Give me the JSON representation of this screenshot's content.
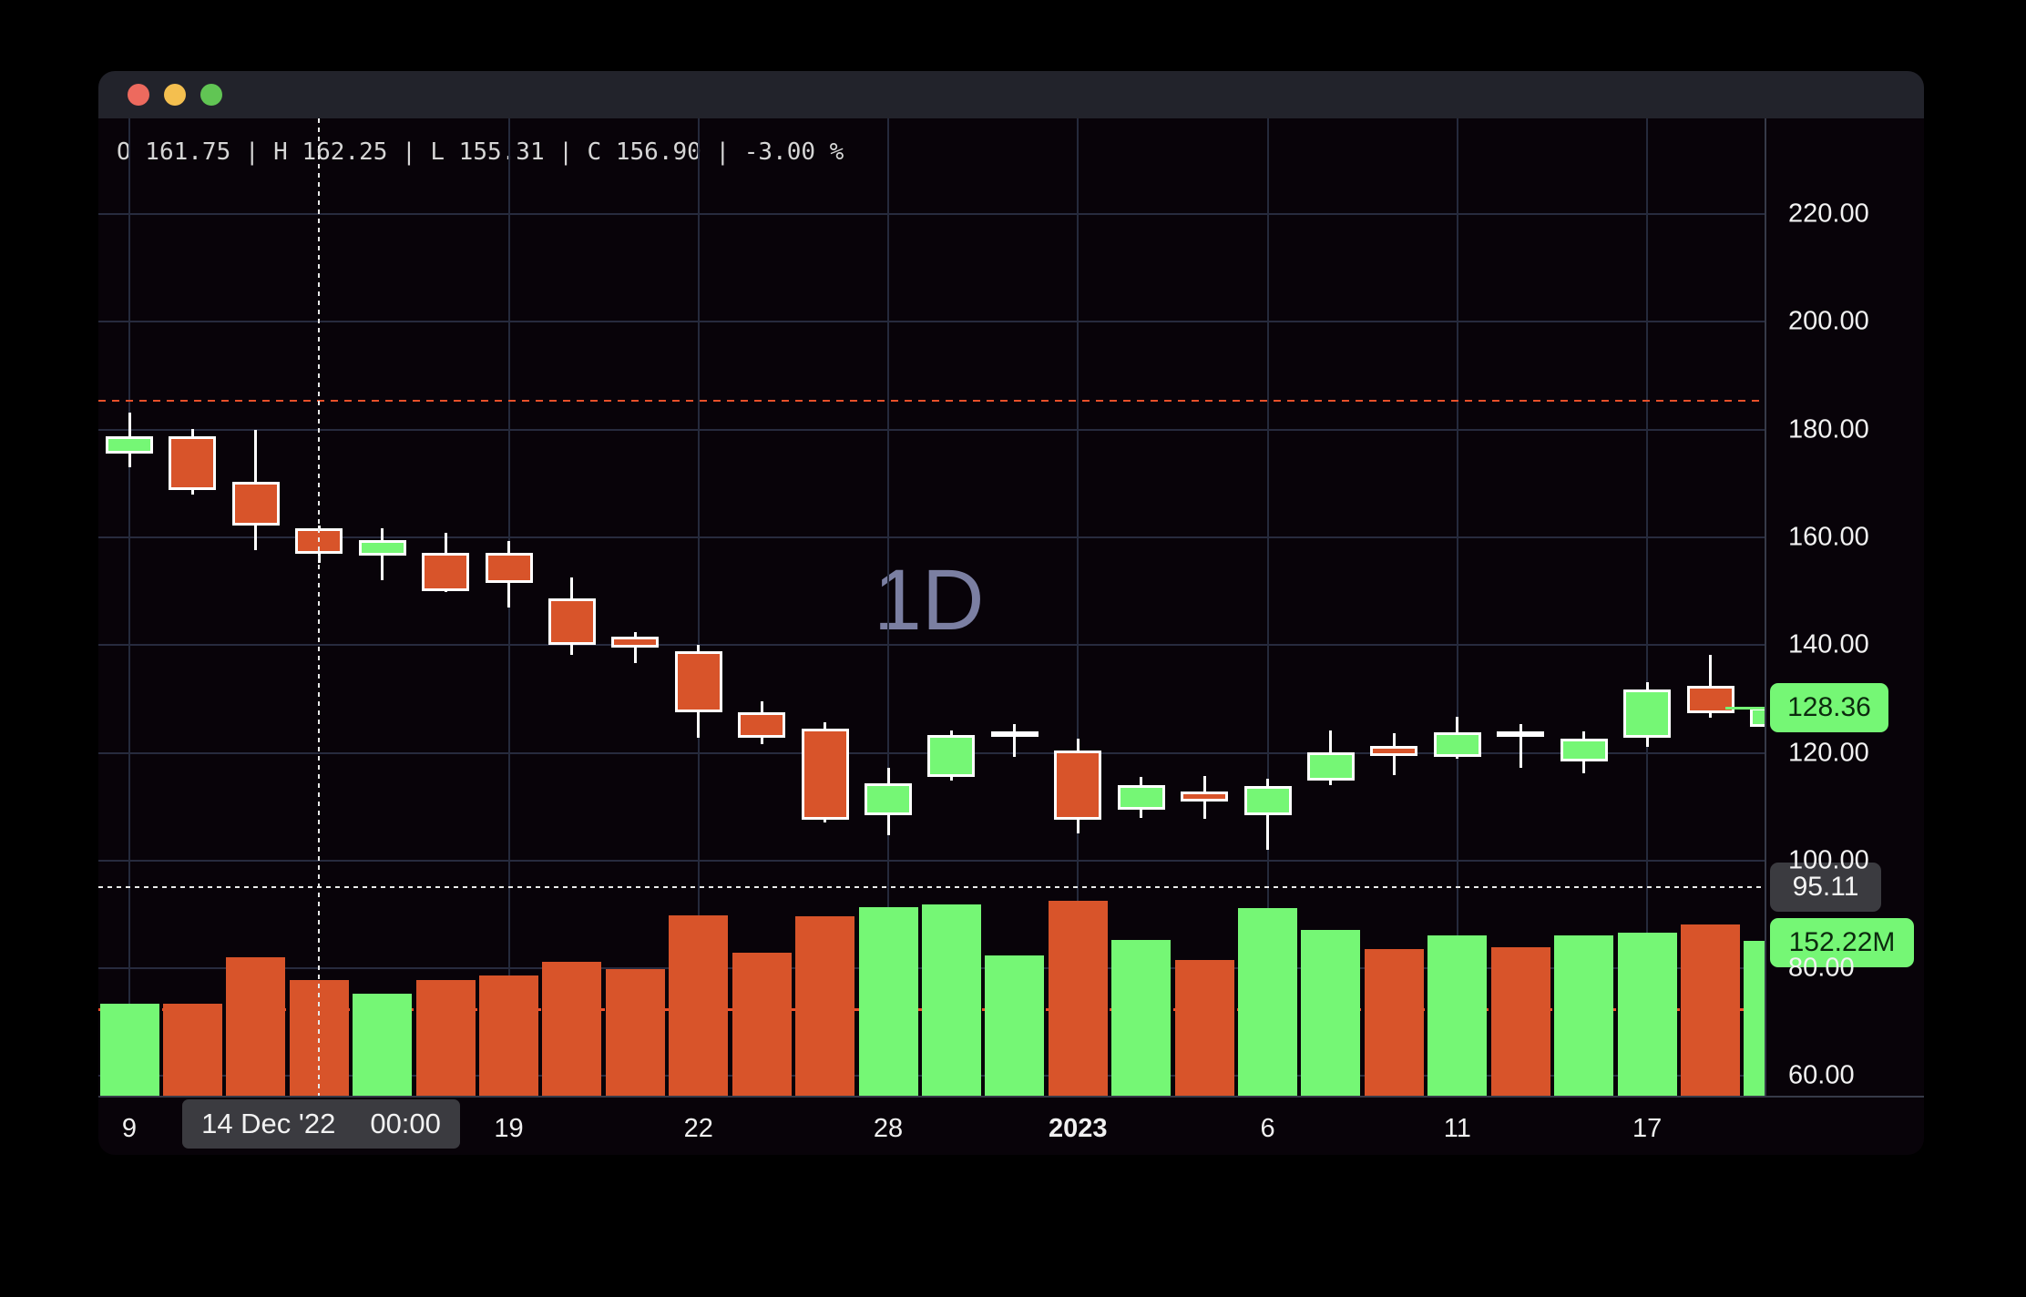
{
  "window": {
    "traffic_lights": [
      "close",
      "minimize",
      "zoom"
    ]
  },
  "ohlc_row": {
    "text": "O 161.75 | H 162.25 | L 155.31 | C 156.90 | -3.00 %"
  },
  "watermark": "1D",
  "colors": {
    "up": "#75f775",
    "down": "#d8542a",
    "wick": "#ffffff",
    "background": "#080309",
    "grid": "#272b3e",
    "watermark": "#7b7fa2",
    "prev_close_line": "#e8502a",
    "volume_level_line": "#f1512b",
    "crosshair": "#e9e9e9"
  },
  "chart_data": {
    "type": "candlestick_with_volume",
    "timeframe": "1D",
    "price_axis": {
      "ticks": [
        {
          "value": 220,
          "label": "220.00"
        },
        {
          "value": 200,
          "label": "200.00"
        },
        {
          "value": 180,
          "label": "180.00"
        },
        {
          "value": 160,
          "label": "160.00"
        },
        {
          "value": 140,
          "label": "140.00"
        },
        {
          "value": 120,
          "label": "120.00"
        },
        {
          "value": 100,
          "label": "100.00"
        },
        {
          "value": 80,
          "label": "80.00"
        },
        {
          "value": 60,
          "label": "60.00"
        }
      ]
    },
    "time_axis": {
      "ticks": [
        {
          "label": "9",
          "bar_index": 0,
          "bold": false
        },
        {
          "label": "19",
          "bar_index": 6,
          "bold": false
        },
        {
          "label": "22",
          "bar_index": 9,
          "bold": false
        },
        {
          "label": "28",
          "bar_index": 12,
          "bold": false
        },
        {
          "label": "2023",
          "bar_index": 15,
          "bold": true
        },
        {
          "label": "6",
          "bar_index": 18,
          "bold": false
        },
        {
          "label": "11",
          "bar_index": 21,
          "bold": false
        },
        {
          "label": "17",
          "bar_index": 24,
          "bold": false
        }
      ]
    },
    "bars": [
      {
        "date": "2022-12-09",
        "o": 175.5,
        "h": 183.1,
        "l": 173.0,
        "c": 178.7,
        "v_m": 90,
        "vol_up": true
      },
      {
        "date": "2022-12-12",
        "o": 178.7,
        "h": 180.1,
        "l": 167.9,
        "c": 168.8,
        "v_m": 90,
        "vol_up": false
      },
      {
        "date": "2022-12-13",
        "o": 170.3,
        "h": 179.9,
        "l": 157.6,
        "c": 162.2,
        "v_m": 136,
        "vol_up": false
      },
      {
        "date": "2022-12-14",
        "o": 161.75,
        "h": 162.25,
        "l": 155.31,
        "c": 156.9,
        "v_m": 114,
        "vol_up": false
      },
      {
        "date": "2022-12-15",
        "o": 156.6,
        "h": 161.7,
        "l": 152.1,
        "c": 159.5,
        "v_m": 100,
        "vol_up": true
      },
      {
        "date": "2022-12-16",
        "o": 157.1,
        "h": 160.9,
        "l": 149.8,
        "c": 150.0,
        "v_m": 114,
        "vol_up": false
      },
      {
        "date": "2022-12-19",
        "o": 157.1,
        "h": 159.3,
        "l": 147.0,
        "c": 151.6,
        "v_m": 118,
        "vol_up": false
      },
      {
        "date": "2022-12-20",
        "o": 148.7,
        "h": 152.5,
        "l": 138.2,
        "c": 140.0,
        "v_m": 132,
        "vol_up": false
      },
      {
        "date": "2022-12-21",
        "o": 141.5,
        "h": 142.4,
        "l": 136.6,
        "c": 139.5,
        "v_m": 124,
        "vol_up": false
      },
      {
        "date": "2022-12-22",
        "o": 138.8,
        "h": 140.0,
        "l": 122.8,
        "c": 127.5,
        "v_m": 177,
        "vol_up": false
      },
      {
        "date": "2022-12-23",
        "o": 127.5,
        "h": 129.6,
        "l": 121.6,
        "c": 122.8,
        "v_m": 141,
        "vol_up": false
      },
      {
        "date": "2022-12-27",
        "o": 124.5,
        "h": 125.7,
        "l": 107.1,
        "c": 107.6,
        "v_m": 176,
        "vol_up": false
      },
      {
        "date": "2022-12-28",
        "o": 108.4,
        "h": 117.2,
        "l": 104.7,
        "c": 114.4,
        "v_m": 185,
        "vol_up": true
      },
      {
        "date": "2022-12-29",
        "o": 115.5,
        "h": 124.2,
        "l": 114.9,
        "c": 123.3,
        "v_m": 188,
        "vol_up": true
      },
      {
        "date": "2022-12-30",
        "o": 123.2,
        "h": 125.3,
        "l": 119.2,
        "c": 123.9,
        "v_m": 138,
        "vol_up": true
      },
      {
        "date": "2023-01-03",
        "o": 120.4,
        "h": 122.6,
        "l": 105.0,
        "c": 107.6,
        "v_m": 192,
        "vol_up": false
      },
      {
        "date": "2023-01-04",
        "o": 109.4,
        "h": 115.5,
        "l": 107.9,
        "c": 114.0,
        "v_m": 153,
        "vol_up": true
      },
      {
        "date": "2023-01-05",
        "o": 112.8,
        "h": 115.7,
        "l": 107.7,
        "c": 110.9,
        "v_m": 133,
        "vol_up": false
      },
      {
        "date": "2023-01-06",
        "o": 108.4,
        "h": 115.1,
        "l": 102.0,
        "c": 113.9,
        "v_m": 184,
        "vol_up": true
      },
      {
        "date": "2023-01-09",
        "o": 114.9,
        "h": 124.2,
        "l": 114.0,
        "c": 120.1,
        "v_m": 163,
        "vol_up": true
      },
      {
        "date": "2023-01-10",
        "o": 121.3,
        "h": 123.6,
        "l": 115.8,
        "c": 119.4,
        "v_m": 144,
        "vol_up": false
      },
      {
        "date": "2023-01-11",
        "o": 119.3,
        "h": 126.7,
        "l": 118.9,
        "c": 123.8,
        "v_m": 158,
        "vol_up": true
      },
      {
        "date": "2023-01-12",
        "o": 123.7,
        "h": 125.3,
        "l": 117.2,
        "c": 123.9,
        "v_m": 146,
        "vol_up": false
      },
      {
        "date": "2023-01-13",
        "o": 118.4,
        "h": 123.9,
        "l": 116.2,
        "c": 122.6,
        "v_m": 158,
        "vol_up": true
      },
      {
        "date": "2023-01-17",
        "o": 122.8,
        "h": 133.1,
        "l": 121.1,
        "c": 131.7,
        "v_m": 160,
        "vol_up": true
      },
      {
        "date": "2023-01-18",
        "o": 132.4,
        "h": 138.2,
        "l": 126.5,
        "c": 127.4,
        "v_m": 168,
        "vol_up": false
      },
      {
        "date": "2023-01-19",
        "o": 124.9,
        "h": 131.6,
        "l": 124.3,
        "c": 128.36,
        "v_m": 152.22,
        "vol_up": true
      }
    ],
    "levels": {
      "prev_close_price": 185.3,
      "volume_level_m": 85
    },
    "crosshair": {
      "bar_index": 3,
      "price": 95.11,
      "price_label": "95.11",
      "date_label": "14 Dec '22",
      "time_label": "00:00"
    },
    "last_price": 128.36,
    "labels": {
      "last_price": "128.36",
      "last_volume": "152.22M"
    }
  }
}
